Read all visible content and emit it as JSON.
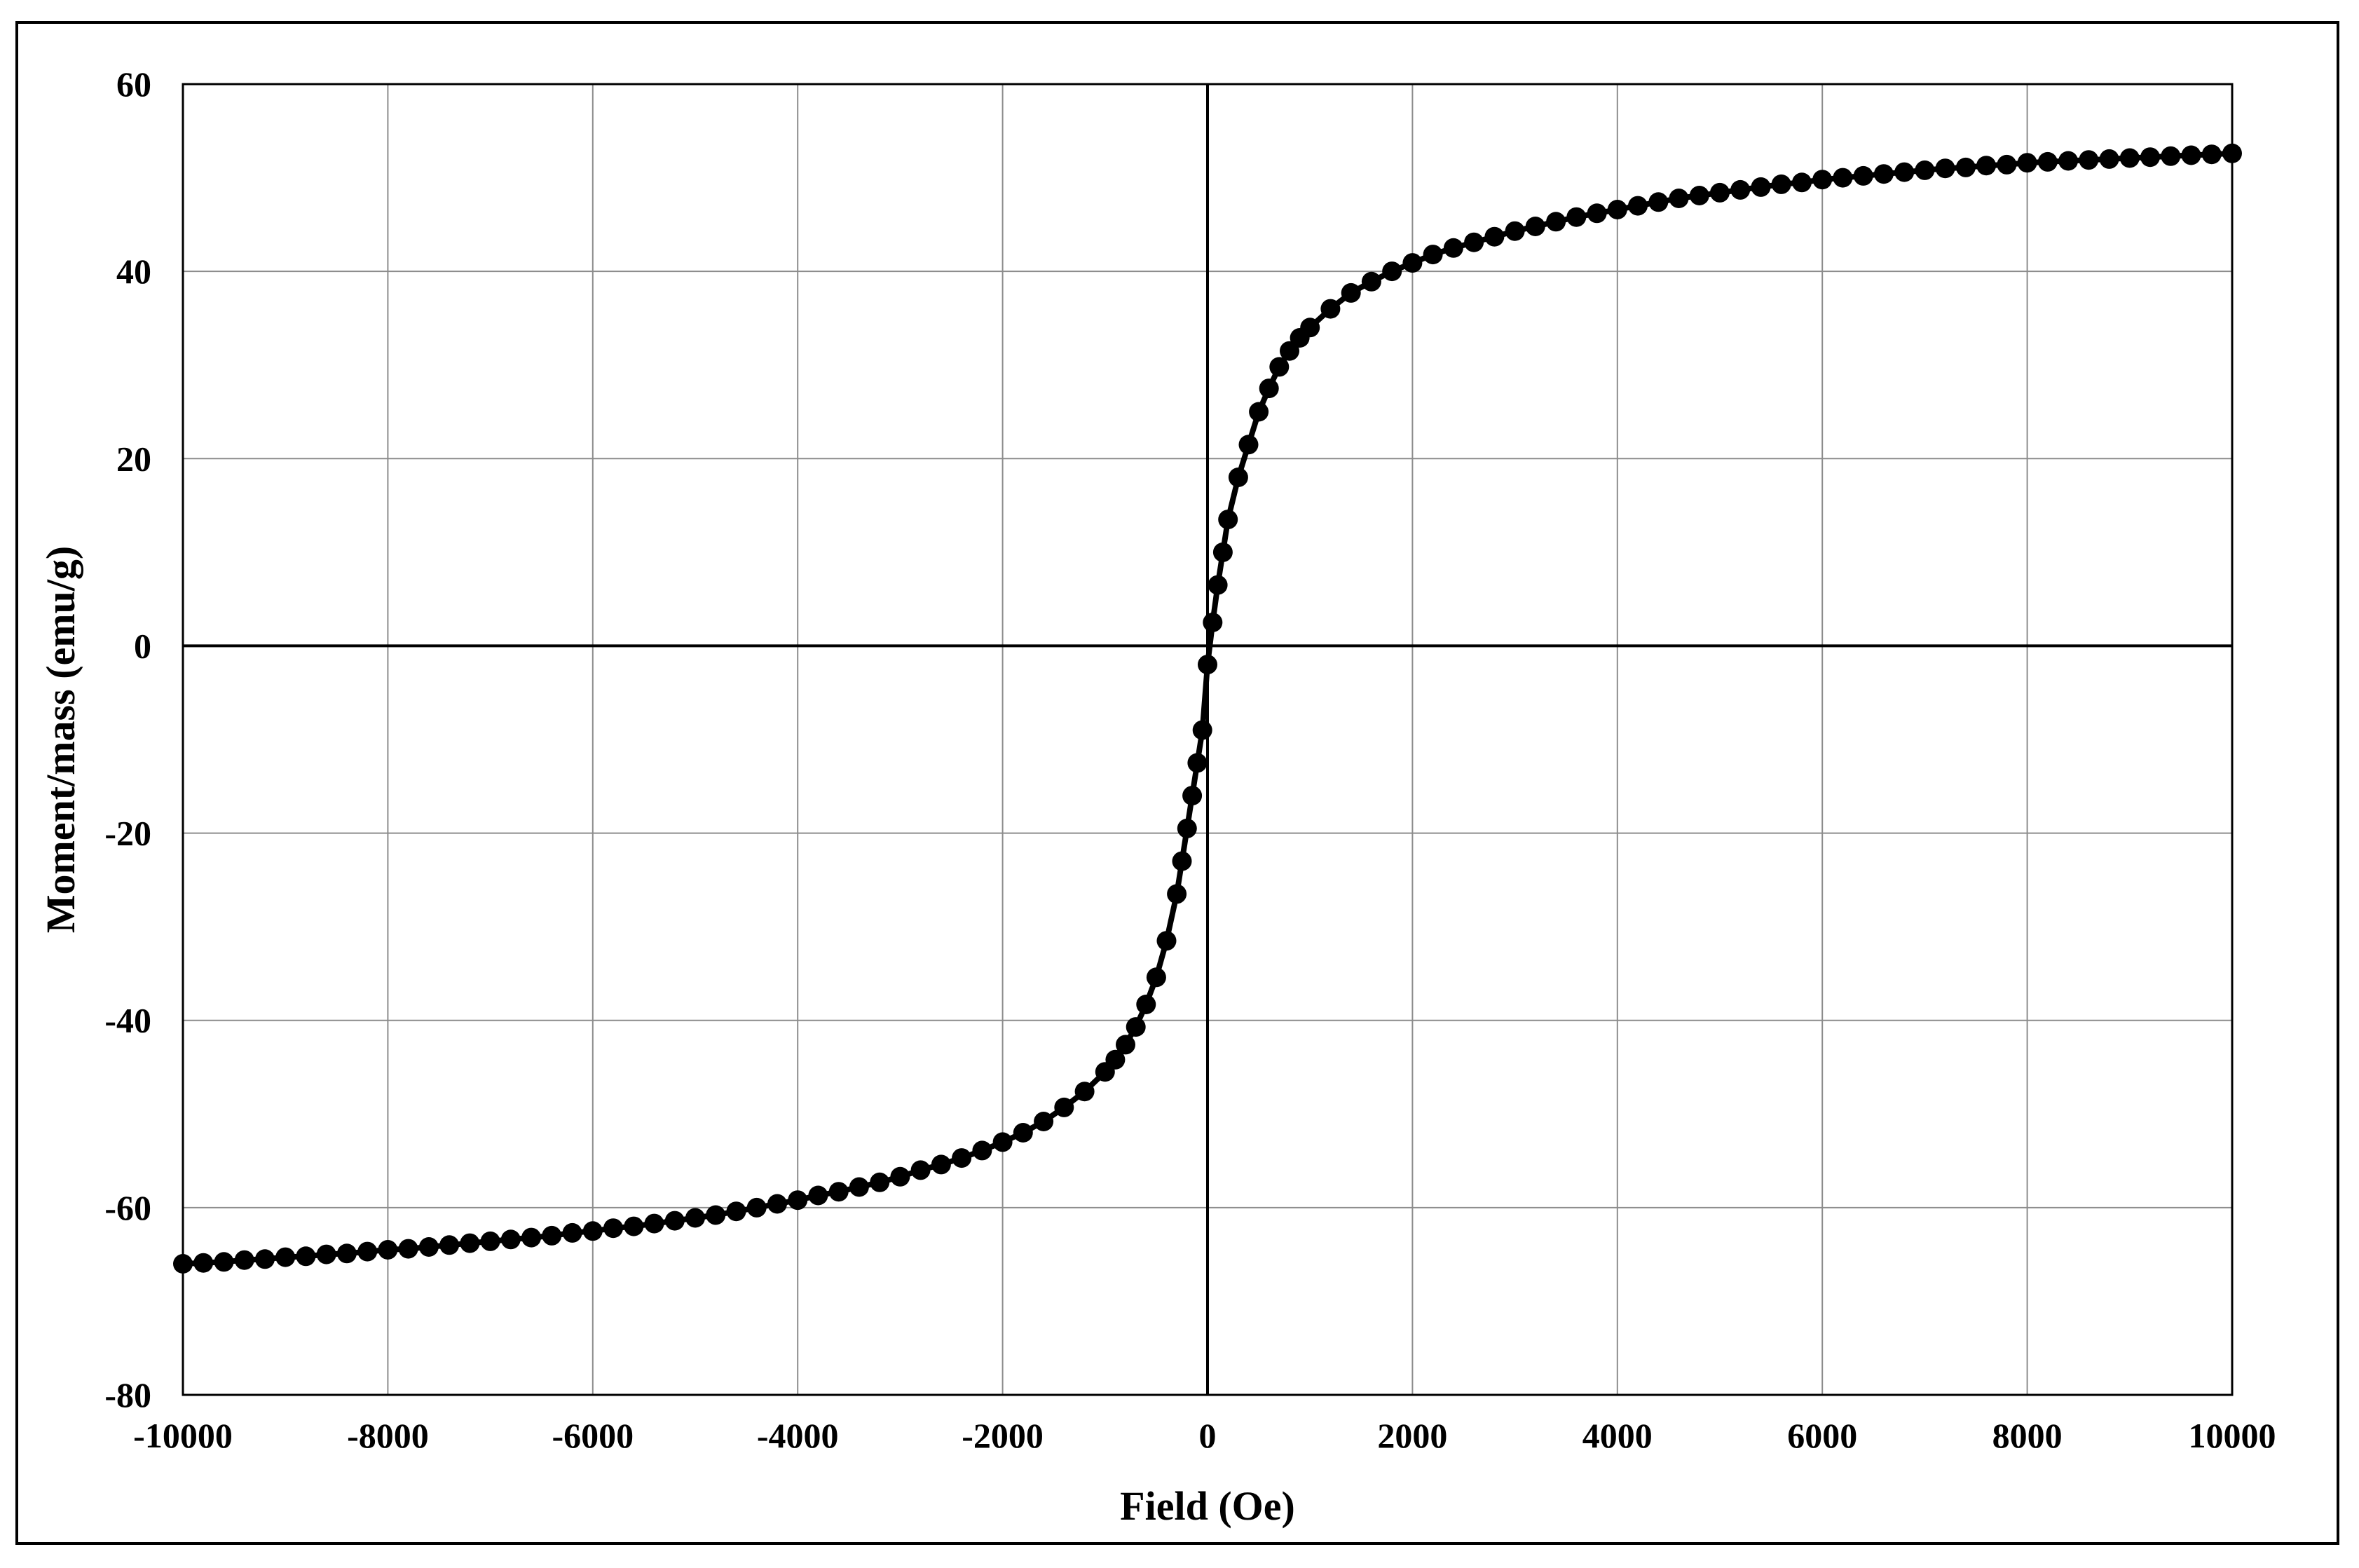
{
  "chart_data": {
    "type": "scatter",
    "title": "",
    "xlabel": "Field (Oe)",
    "ylabel": "Moment/mass (emu/g)",
    "xlim": [
      -10000,
      10000
    ],
    "ylim": [
      -80,
      60
    ],
    "xticks": [
      "-10000",
      "-8000",
      "-6000",
      "-4000",
      "-2000",
      "0",
      "2000",
      "4000",
      "6000",
      "8000",
      "10000"
    ],
    "yticks": [
      "60",
      "40",
      "20",
      "0",
      "-20",
      "-40",
      "-60",
      "-80"
    ],
    "grid": true,
    "legend": "none",
    "colors": {
      "series": "#000000",
      "grid": "#8c8c8c",
      "axis": "#000000"
    },
    "series": [
      {
        "name": "",
        "line": true,
        "marker": "circle",
        "x": [
          -10000,
          -9800,
          -9600,
          -9400,
          -9200,
          -9000,
          -8800,
          -8600,
          -8400,
          -8200,
          -8000,
          -7800,
          -7600,
          -7400,
          -7200,
          -7000,
          -6800,
          -6600,
          -6400,
          -6200,
          -6000,
          -5800,
          -5600,
          -5400,
          -5200,
          -5000,
          -4800,
          -4600,
          -4400,
          -4200,
          -4000,
          -3800,
          -3600,
          -3400,
          -3200,
          -3000,
          -2800,
          -2600,
          -2400,
          -2200,
          -2000,
          -1800,
          -1600,
          -1400,
          -1200,
          -1000,
          -900,
          -800,
          -700,
          -600,
          -500,
          -400,
          -300,
          -250,
          -200,
          -150,
          -100,
          -50,
          0,
          50,
          100,
          150,
          200,
          300,
          400,
          500,
          600,
          700,
          800,
          900,
          1000,
          1200,
          1400,
          1600,
          1800,
          2000,
          2200,
          2400,
          2600,
          2800,
          3000,
          3200,
          3400,
          3600,
          3800,
          4000,
          4200,
          4400,
          4600,
          4800,
          5000,
          5200,
          5400,
          5600,
          5800,
          6000,
          6200,
          6400,
          6600,
          6800,
          7000,
          7200,
          7400,
          7600,
          7800,
          8000,
          8200,
          8400,
          8600,
          8800,
          9000,
          9200,
          9400,
          9600,
          9800,
          10000
        ],
        "y": [
          -66.0,
          -65.9,
          -65.8,
          -65.6,
          -65.5,
          -65.3,
          -65.2,
          -65.0,
          -64.9,
          -64.7,
          -64.5,
          -64.4,
          -64.2,
          -64.0,
          -63.8,
          -63.6,
          -63.4,
          -63.2,
          -63.0,
          -62.7,
          -62.5,
          -62.2,
          -62.0,
          -61.7,
          -61.4,
          -61.1,
          -60.8,
          -60.4,
          -60.0,
          -59.6,
          -59.2,
          -58.7,
          -58.3,
          -57.8,
          -57.3,
          -56.7,
          -56.0,
          -55.4,
          -54.7,
          -53.9,
          -53.0,
          -52.0,
          -50.8,
          -49.3,
          -47.6,
          -45.5,
          -44.2,
          -42.6,
          -40.7,
          -38.3,
          -35.4,
          -31.5,
          -26.5,
          -23.0,
          -19.5,
          -16.0,
          -12.5,
          -9.0,
          -2.0,
          2.5,
          6.5,
          10.0,
          13.5,
          18.0,
          21.5,
          25.0,
          27.5,
          29.8,
          31.5,
          32.9,
          34.0,
          36.0,
          37.7,
          38.9,
          40.0,
          40.9,
          41.8,
          42.5,
          43.1,
          43.7,
          44.3,
          44.8,
          45.3,
          45.8,
          46.2,
          46.6,
          47.0,
          47.4,
          47.8,
          48.1,
          48.4,
          48.7,
          49.0,
          49.3,
          49.5,
          49.8,
          50.0,
          50.2,
          50.4,
          50.6,
          50.8,
          51.0,
          51.1,
          51.3,
          51.4,
          51.6,
          51.7,
          51.8,
          51.9,
          52.0,
          52.1,
          52.2,
          52.3,
          52.4,
          52.5,
          52.6
        ]
      }
    ]
  }
}
